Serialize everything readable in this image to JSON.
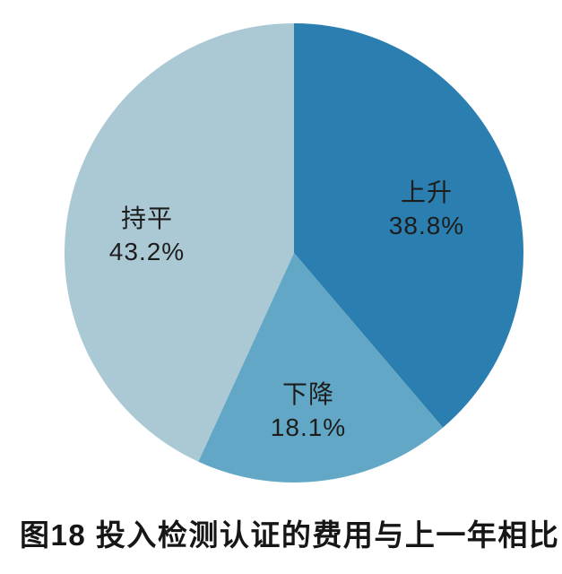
{
  "chart_data": {
    "type": "pie",
    "title": "投入检测认证的费用与上一年相比",
    "figure_number": "图18",
    "start_angle_deg": 0,
    "direction": "clockwise",
    "legend": "none",
    "labels_position": "inside",
    "background_color": "#ffffff",
    "label_text_color": "#1d1d1d",
    "slices": [
      {
        "id": "rise",
        "label": "上升",
        "value": 38.8,
        "display": "38.8%",
        "color": "#2b7eb0"
      },
      {
        "id": "decline",
        "label": "下降",
        "value": 18.1,
        "display": "18.1%",
        "color": "#62a8c6"
      },
      {
        "id": "flat",
        "label": "持平",
        "value": 43.2,
        "display": "43.2%",
        "color": "#aac9d4"
      }
    ]
  },
  "caption": {
    "text": "图18 投入检测认证的费用与上一年相比",
    "color": "#161616"
  }
}
